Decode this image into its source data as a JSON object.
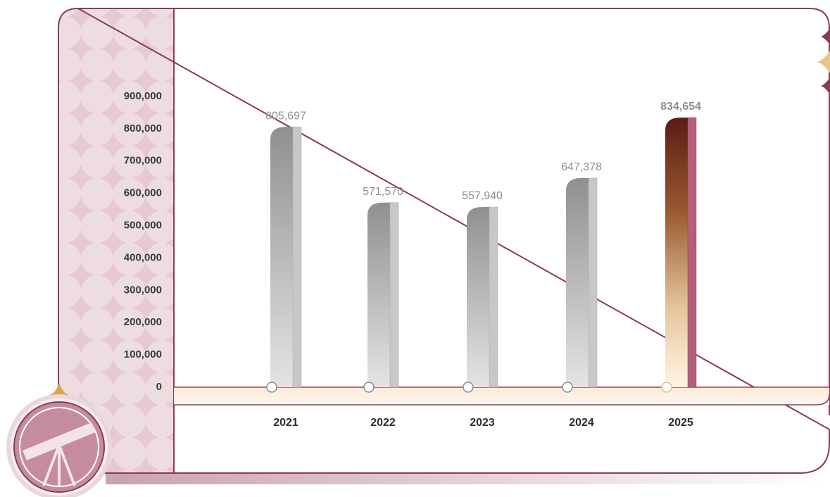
{
  "chart_data": {
    "type": "bar",
    "categories": [
      "2021",
      "2022",
      "2023",
      "2024",
      "2025"
    ],
    "values": [
      805697,
      571570,
      557940,
      647378,
      834654
    ],
    "value_labels": [
      "805,697",
      "571,570",
      "557,940",
      "647,378",
      "834,654"
    ],
    "bar_colors": [
      "#a9aaac",
      "#a9aaac",
      "#a9aaac",
      "#a9aaac",
      "#8b4a26"
    ],
    "label_colors": [
      "#2e2e2e",
      "#2e2e2e",
      "#2e2e2e",
      "#2e2e2e",
      "#9b3a60"
    ],
    "value_label_colors": [
      "#8e8e8e",
      "#8e8e8e",
      "#8e8e8e",
      "#8e8e8e",
      "#9b3a60"
    ],
    "ylim": [
      0,
      900000
    ],
    "yticks": [
      0,
      {
        "value": 100000,
        "label": "100,000"
      },
      {
        "value": 200000,
        "label": "200,000"
      },
      {
        "value": 300000,
        "label": "300,000"
      },
      {
        "value": 400000,
        "label": "400,000"
      },
      {
        "value": 500000,
        "label": "500,000"
      },
      {
        "value": 600000,
        "label": "600,000"
      },
      {
        "value": 700000,
        "label": "700,000"
      },
      {
        "value": 800000,
        "label": "800,000"
      },
      {
        "value": 900000,
        "label": "900,000"
      }
    ]
  }
}
